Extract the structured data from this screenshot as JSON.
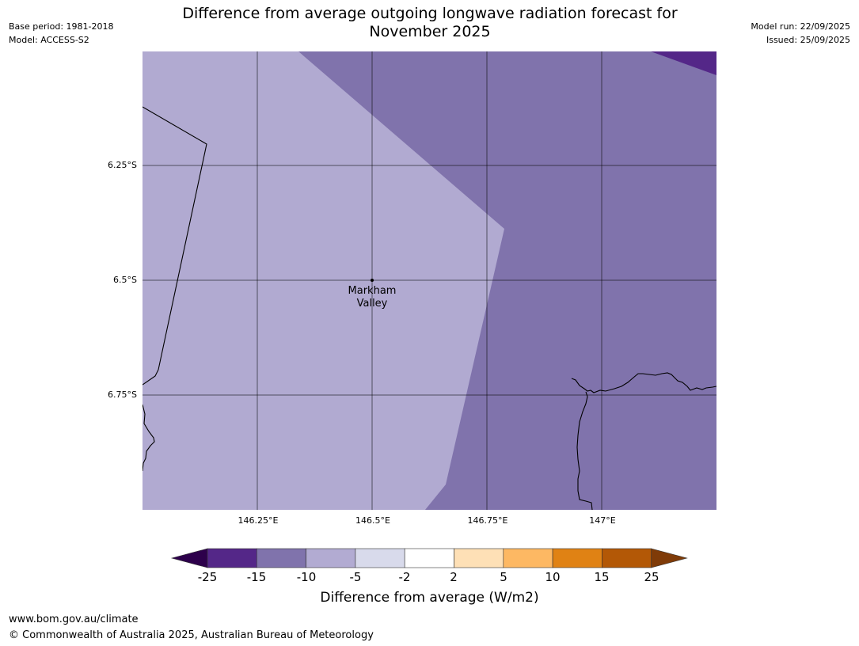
{
  "header": {
    "base_period": "Base period: 1981-2018",
    "model": "Model: ACCESS-S2",
    "model_run": "Model run: 22/09/2025",
    "issued": "Issued: 25/09/2025",
    "title_line1": "Difference from average outgoing longwave radiation forecast for",
    "title_line2": "November 2025"
  },
  "map": {
    "lat_labels": [
      "6.25°S",
      "6.5°S",
      "6.75°S"
    ],
    "lon_labels": [
      "146.25°E",
      "146.5°E",
      "146.75°E",
      "147°E"
    ],
    "location": {
      "name_line1": "Markham",
      "name_line2": "Valley"
    },
    "region_colors": {
      "neg5_to_neg10": "#b1aad1",
      "neg10_to_neg15": "#8073ac",
      "neg15_to_neg25": "#542788"
    }
  },
  "colorbar": {
    "title": "Difference from average (W/m2)",
    "ticks": [
      "-25",
      "-15",
      "-10",
      "-5",
      "-2",
      "2",
      "5",
      "10",
      "15",
      "25"
    ],
    "colors": {
      "below": "#2d004b",
      "bins": [
        "#542788",
        "#8073ac",
        "#b2abd2",
        "#d8daeb",
        "#ffffff",
        "#fee0b6",
        "#fdb863",
        "#e08214",
        "#b35806"
      ],
      "above": "#7f3b08"
    }
  },
  "footer": {
    "url": "www.bom.gov.au/climate",
    "copyright": "© Commonwealth of Australia 2025, Australian Bureau of Meteorology"
  }
}
